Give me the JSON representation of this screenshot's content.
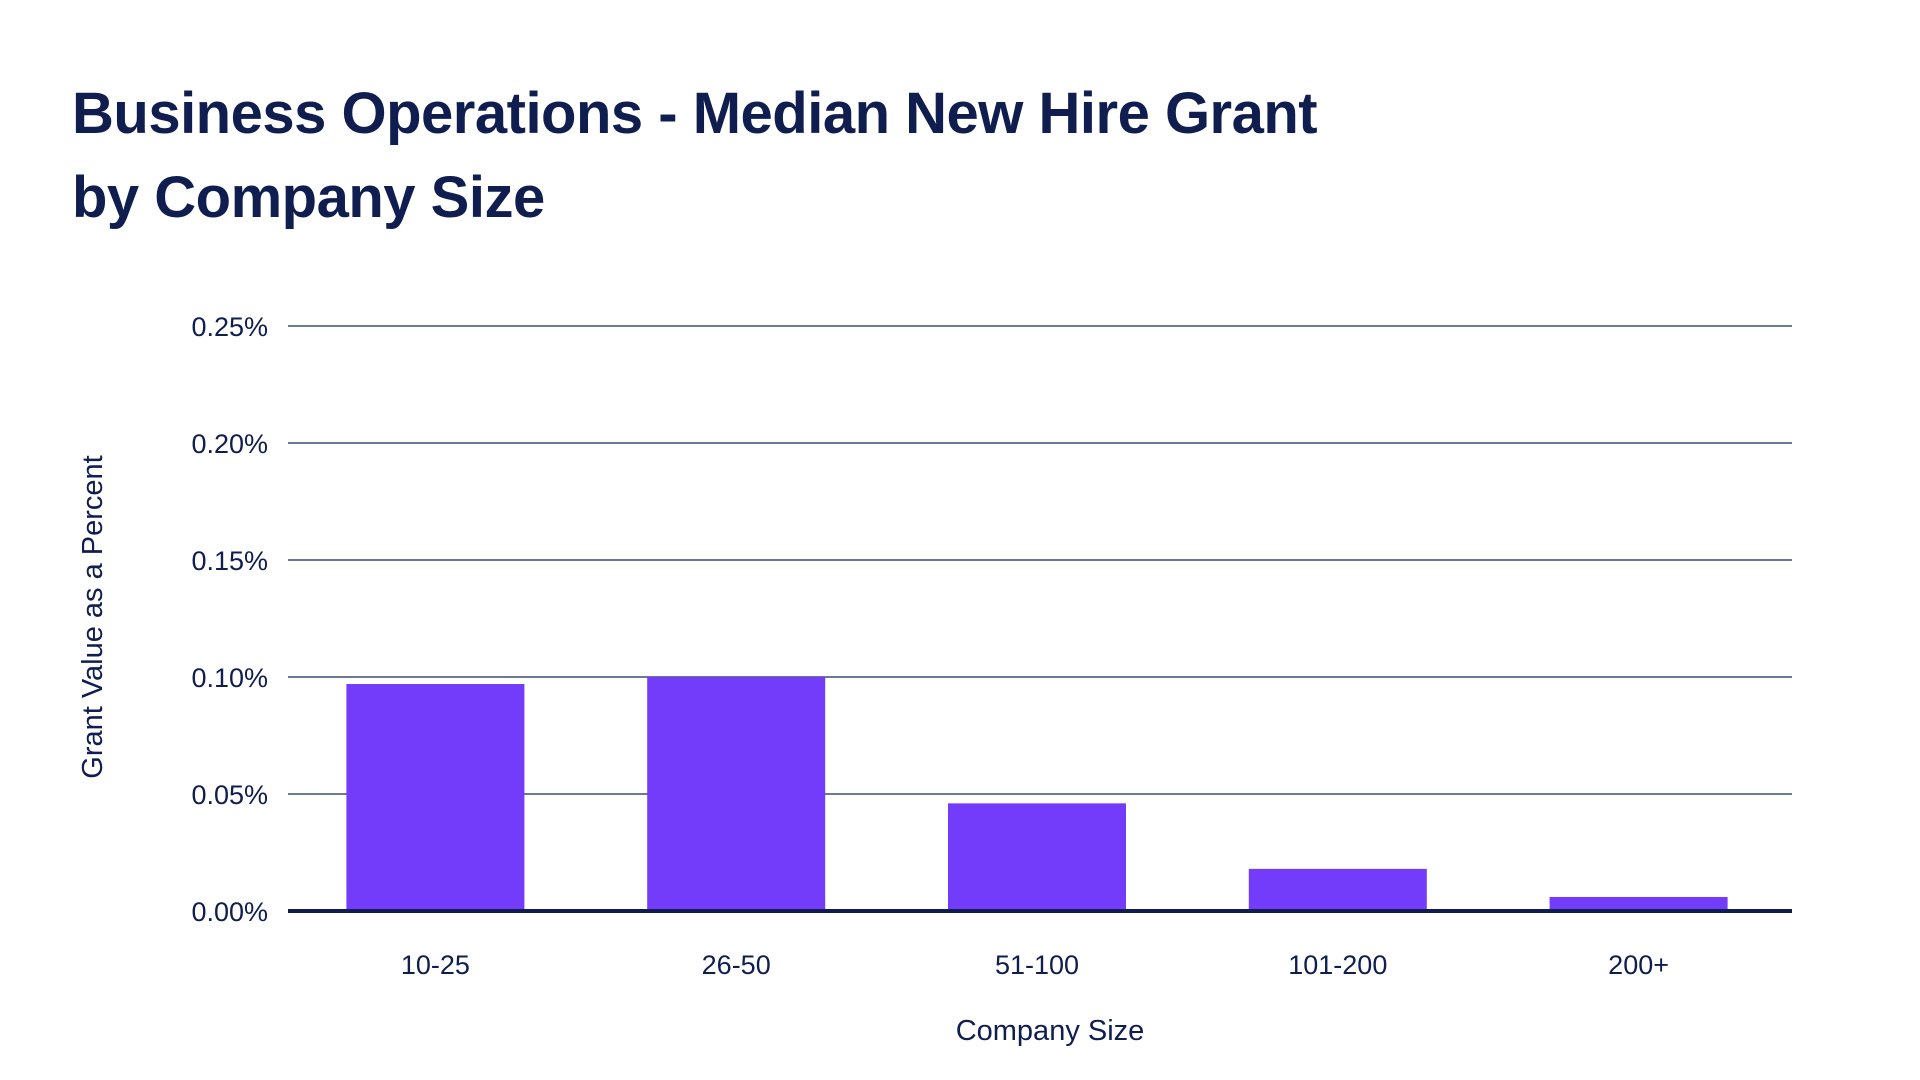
{
  "chart_data": {
    "type": "bar",
    "title_lines": [
      "Business Operations - Median New Hire Grant",
      "by Company Size"
    ],
    "xlabel": "Company Size",
    "ylabel": "Grant Value as a Percent",
    "categories": [
      "10-25",
      "26-50",
      "51-100",
      "101-200",
      "200+"
    ],
    "values": [
      0.097,
      0.1,
      0.046,
      0.018,
      0.006
    ],
    "ylim": [
      0,
      0.25
    ],
    "yticks": [
      0,
      0.05,
      0.1,
      0.15,
      0.2,
      0.25
    ],
    "ytick_labels": [
      "0.00%",
      "0.05%",
      "0.10%",
      "0.15%",
      "0.20%",
      "0.25%"
    ],
    "grid": true,
    "colors": {
      "bar": "#733cfa",
      "grid": "#3d4a75",
      "axis": "#0f1d4f",
      "text": "#0f1d4f"
    }
  }
}
